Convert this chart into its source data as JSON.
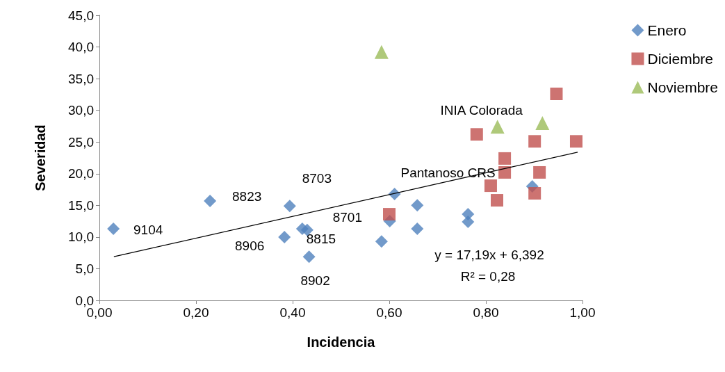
{
  "chart_data": {
    "type": "scatter",
    "xlabel": "Incidencia",
    "ylabel": "Severidad",
    "xlim": [
      0,
      1
    ],
    "ylim": [
      0,
      45
    ],
    "xticks": [
      {
        "value": 0,
        "label": "0,00"
      },
      {
        "value": 0.2,
        "label": "0,20"
      },
      {
        "value": 0.4,
        "label": "0,40"
      },
      {
        "value": 0.6,
        "label": "0,60"
      },
      {
        "value": 0.8,
        "label": "0,80"
      },
      {
        "value": 1,
        "label": "1,00"
      }
    ],
    "yticks": [
      {
        "value": 0,
        "label": "0,0"
      },
      {
        "value": 5,
        "label": "5,0"
      },
      {
        "value": 10,
        "label": "10,0"
      },
      {
        "value": 15,
        "label": "15,0"
      },
      {
        "value": 20,
        "label": "20,0"
      },
      {
        "value": 25,
        "label": "25,0"
      },
      {
        "value": 30,
        "label": "30,0"
      },
      {
        "value": 35,
        "label": "35,0"
      },
      {
        "value": 40,
        "label": "40,0"
      },
      {
        "value": 45,
        "label": "45,0"
      }
    ],
    "grid": false,
    "legend": "top right",
    "series": [
      {
        "name": "Enero",
        "color": "#4f81bd",
        "marker": "diamond",
        "x": [
          0.029,
          0.229,
          0.394,
          0.383,
          0.42,
          0.43,
          0.434,
          0.584,
          0.601,
          0.611,
          0.658,
          0.658,
          0.763,
          0.763,
          0.896
        ],
        "values": [
          11.3,
          15.7,
          14.9,
          10.0,
          11.3,
          11.1,
          6.9,
          9.3,
          12.5,
          16.8,
          15.0,
          11.3,
          13.6,
          12.4,
          18.0
        ]
      },
      {
        "name": "Diciembre",
        "color": "#c0504d",
        "marker": "square",
        "x": [
          0.6,
          0.781,
          0.81,
          0.823,
          0.839,
          0.839,
          0.901,
          0.911,
          0.901,
          0.946,
          0.987
        ],
        "values": [
          13.6,
          26.2,
          18.1,
          15.8,
          22.4,
          20.2,
          25.1,
          20.2,
          16.9,
          32.6,
          25.1
        ]
      },
      {
        "name": "Noviembre",
        "color": "#9bbb59",
        "marker": "triangle",
        "x": [
          0.584,
          0.824,
          0.917
        ],
        "values": [
          39.2,
          27.4,
          28.0
        ]
      },
      {
        "type": "line",
        "color": "#000000",
        "marker": "none",
        "x": [
          0.03,
          0.99
        ],
        "values": [
          6.9,
          23.4
        ]
      }
    ],
    "annotations": [
      {
        "text": "9104",
        "x": 0.029,
        "y": 11.3
      },
      {
        "text": "8823",
        "x": 0.229,
        "y": 15.7
      },
      {
        "text": "8703",
        "x": 0.394,
        "y": 14.9
      },
      {
        "text": "8701",
        "x": 0.43,
        "y": 11.1
      },
      {
        "text": "8906",
        "x": 0.383,
        "y": 10.0
      },
      {
        "text": "8815",
        "x": 0.42,
        "y": 11.3
      },
      {
        "text": "8902",
        "x": 0.434,
        "y": 6.9
      },
      {
        "text": "Pantanoso CRS",
        "x": 0.611,
        "y": 16.8
      },
      {
        "text": "INIA Colorada",
        "x": 0.824,
        "y": 27.4
      },
      "y = 17,19x + 6,392",
      "R² = 0,28"
    ]
  }
}
